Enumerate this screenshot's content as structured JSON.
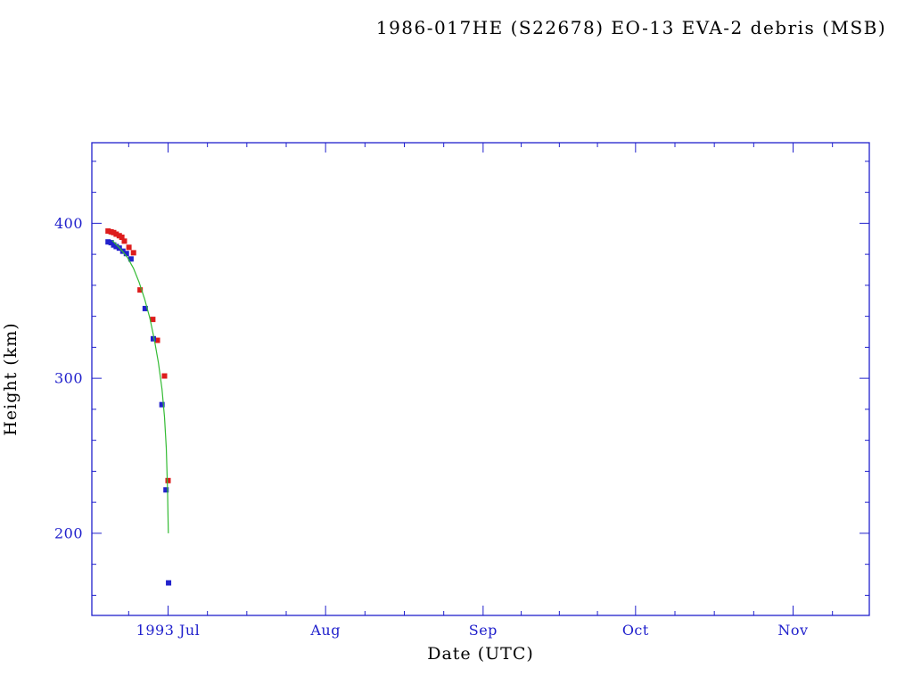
{
  "page": {
    "background": "#ffffff"
  },
  "chart_data": {
    "type": "scatter",
    "title": "1986-017HE (S22678) EO-13 EVA-2 debris (MSB)",
    "xlabel": "Date (UTC)",
    "ylabel": "Height (km)",
    "axis_color": "#2020cc",
    "grid": false,
    "legend": null,
    "x_axis": {
      "unit": "days relative to 1993 Jul 1",
      "range": [
        -15,
        138
      ],
      "major_ticks": [
        {
          "pos": 0,
          "label": "1993 Jul"
        },
        {
          "pos": 31,
          "label": "Aug"
        },
        {
          "pos": 62,
          "label": "Sep"
        },
        {
          "pos": 92,
          "label": "Oct"
        },
        {
          "pos": 123,
          "label": "Nov"
        }
      ],
      "minor_divisions": 4
    },
    "y_axis": {
      "range": [
        147,
        452
      ],
      "major_ticks": [
        {
          "pos": 200,
          "label": "200"
        },
        {
          "pos": 300,
          "label": "300"
        },
        {
          "pos": 400,
          "label": "400"
        }
      ],
      "minor_step": 20
    },
    "series": [
      {
        "name": "apogee-height",
        "type": "scatter",
        "marker": "square",
        "color": "#dd1c1c",
        "points": [
          [
            -11.8,
            395.0
          ],
          [
            -11.2,
            394.5
          ],
          [
            -10.7,
            394.0
          ],
          [
            -10.2,
            393.0
          ],
          [
            -9.6,
            392.0
          ],
          [
            -9.1,
            391.0
          ],
          [
            -8.6,
            388.5
          ],
          [
            -7.7,
            384.5
          ],
          [
            -6.8,
            381.0
          ],
          [
            -5.5,
            357.0
          ],
          [
            -3.0,
            338.0
          ],
          [
            -2.1,
            324.5
          ],
          [
            -0.7,
            301.5
          ],
          [
            0.0,
            234.0
          ]
        ]
      },
      {
        "name": "perigee-height",
        "type": "scatter",
        "marker": "square",
        "color": "#2222cc",
        "points": [
          [
            -11.8,
            388.0
          ],
          [
            -11.2,
            387.5
          ],
          [
            -10.7,
            386.0
          ],
          [
            -10.2,
            385.0
          ],
          [
            -9.6,
            384.0
          ],
          [
            -8.9,
            382.0
          ],
          [
            -8.2,
            380.5
          ],
          [
            -7.3,
            377.0
          ],
          [
            -4.5,
            345.0
          ],
          [
            -2.9,
            325.5
          ],
          [
            -1.2,
            283.0
          ],
          [
            -0.4,
            228.0
          ],
          [
            0.1,
            168.0
          ]
        ]
      },
      {
        "name": "decay-fit-curve",
        "type": "line",
        "color": "#33bb33",
        "points": [
          [
            -11.0,
            389.0
          ],
          [
            -9.5,
            384.0
          ],
          [
            -8.0,
            378.0
          ],
          [
            -6.8,
            371.0
          ],
          [
            -5.7,
            362.0
          ],
          [
            -4.6,
            351.0
          ],
          [
            -3.6,
            339.0
          ],
          [
            -2.7,
            325.0
          ],
          [
            -1.9,
            310.0
          ],
          [
            -1.2,
            293.0
          ],
          [
            -0.7,
            275.0
          ],
          [
            -0.35,
            255.0
          ],
          [
            -0.1,
            228.0
          ],
          [
            0.05,
            200.0
          ]
        ]
      }
    ]
  }
}
